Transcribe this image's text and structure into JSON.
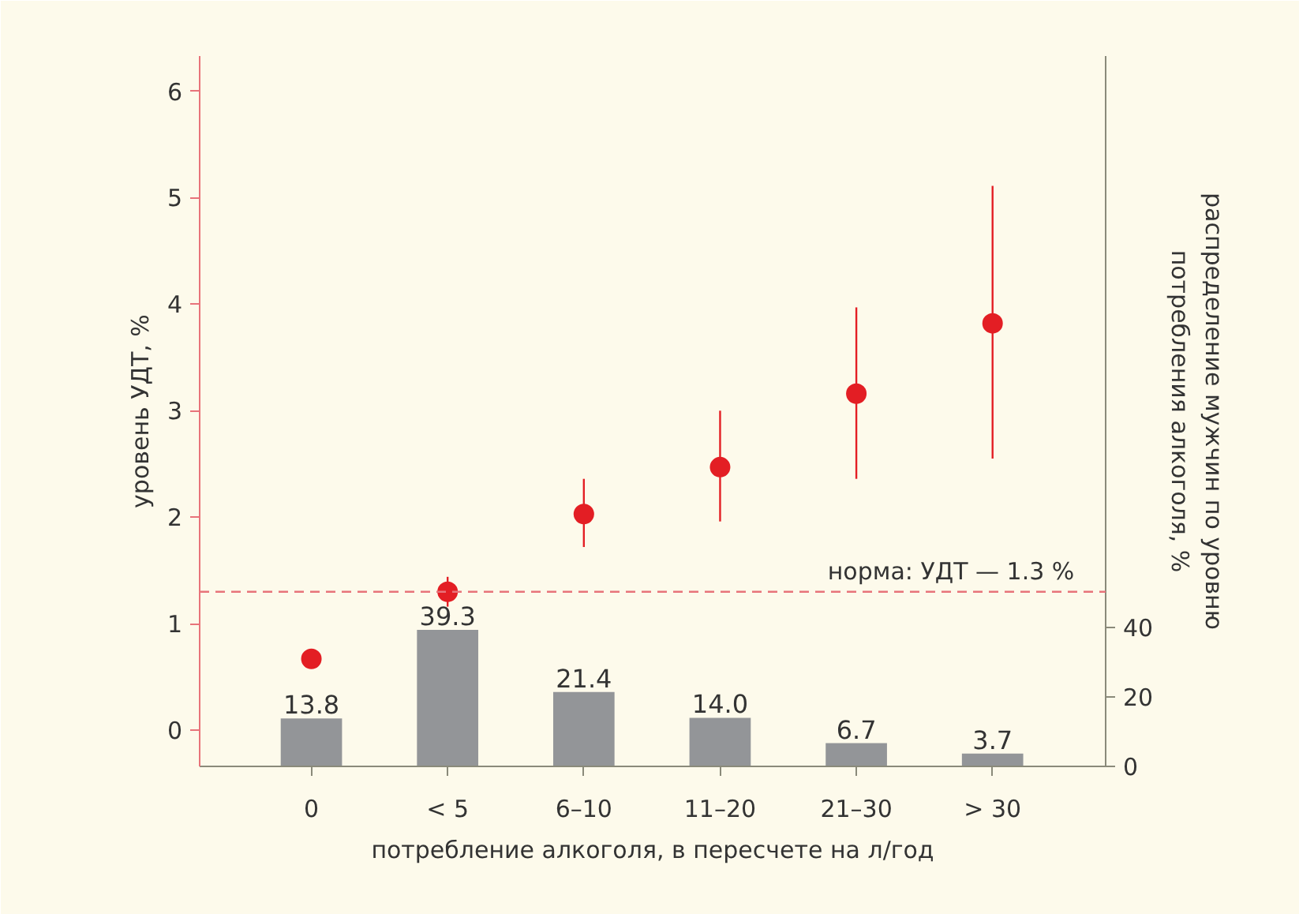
{
  "chart_data": {
    "type": "scatter",
    "xlabel": "потребление алкоголя, в пересчете на л/год",
    "ylabel": "уровень УДТ, %",
    "y2label": "распределение мужчин по уровню\nпотребления алкоголя, %",
    "categories": [
      "0",
      "< 5",
      "6–10",
      "11–20",
      "21–30",
      "> 30"
    ],
    "series": [
      {
        "type": "bar",
        "axis": "y2",
        "color": "#939598",
        "values": [
          13.8,
          39.3,
          21.4,
          14.0,
          6.7,
          3.7
        ],
        "value_labels": [
          "13.8",
          "39.3",
          "21.4",
          "14.0",
          "6.7",
          "3.7"
        ]
      },
      {
        "color": "#e31e24",
        "values": [
          0.67,
          1.3,
          2.03,
          2.47,
          3.16,
          3.82
        ],
        "errors": [
          null,
          [
            1.16,
            1.44
          ],
          [
            1.72,
            2.36
          ],
          [
            1.96,
            3.0
          ],
          [
            2.36,
            3.97
          ],
          [
            2.55,
            5.11
          ]
        ]
      }
    ],
    "ylim": [
      -0.34,
      6.33
    ],
    "yticks": [
      0,
      1,
      2,
      3,
      4,
      5,
      6
    ],
    "y2lim": [
      0,
      204.5
    ],
    "y2ticks": [
      0,
      20,
      40
    ],
    "ref_lines": [
      {
        "axis": "y",
        "value": 1.3,
        "label": "норма: УДТ — 1.3 %",
        "color": "#e8737a",
        "line_style": "dashed"
      }
    ],
    "marker": "circle",
    "grid": false
  }
}
